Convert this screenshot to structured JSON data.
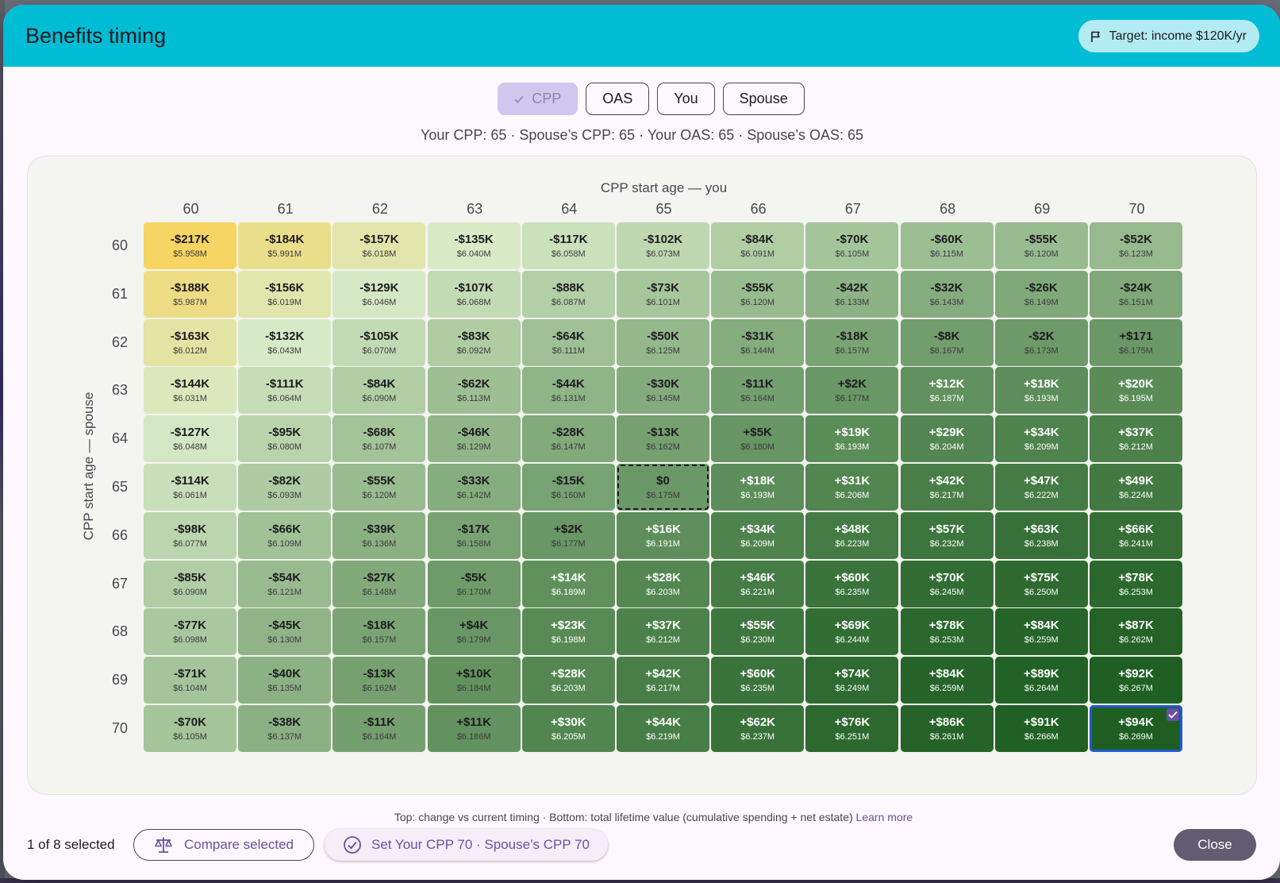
{
  "dialog": {
    "title": "Benefits timing",
    "target_chip": {
      "icon": "flag-icon",
      "label": "Target: income $120K/yr"
    }
  },
  "segments": [
    {
      "label": "CPP",
      "selected": true
    },
    {
      "label": "OAS",
      "selected": false
    },
    {
      "label": "You",
      "selected": false
    },
    {
      "label": "Spouse",
      "selected": false
    }
  ],
  "summary": "Your CPP: 65 · Spouse’s CPP: 65 · Your OAS: 65 · Spouse’s OAS: 65",
  "heatmap": {
    "col_axis_title": "CPP start age — you",
    "row_axis_title": "CPP start age — spouse",
    "col_ages": [
      "60",
      "61",
      "62",
      "63",
      "64",
      "65",
      "66",
      "67",
      "68",
      "69",
      "70"
    ],
    "row_ages": [
      "60",
      "61",
      "62",
      "63",
      "64",
      "65",
      "66",
      "67",
      "68",
      "69",
      "70"
    ],
    "current": {
      "row": 5,
      "col": 5
    },
    "selected": {
      "row": 10,
      "col": 10
    },
    "colors": {
      "worst": "#f6d562",
      "mid": "#d8ebc8",
      "best": "#1e5e22"
    },
    "rows": [
      [
        [
          "-$217K",
          "$5.958M"
        ],
        [
          "-$184K",
          "$5.991M"
        ],
        [
          "-$157K",
          "$6.018M"
        ],
        [
          "-$135K",
          "$6.040M"
        ],
        [
          "-$117K",
          "$6.058M"
        ],
        [
          "-$102K",
          "$6.073M"
        ],
        [
          "-$84K",
          "$6.091M"
        ],
        [
          "-$70K",
          "$6.105M"
        ],
        [
          "-$60K",
          "$6.115M"
        ],
        [
          "-$55K",
          "$6.120M"
        ],
        [
          "-$52K",
          "$6.123M"
        ]
      ],
      [
        [
          "-$188K",
          "$5.987M"
        ],
        [
          "-$156K",
          "$6.019M"
        ],
        [
          "-$129K",
          "$6.046M"
        ],
        [
          "-$107K",
          "$6.068M"
        ],
        [
          "-$88K",
          "$6.087M"
        ],
        [
          "-$73K",
          "$6.101M"
        ],
        [
          "-$55K",
          "$6.120M"
        ],
        [
          "-$42K",
          "$6.133M"
        ],
        [
          "-$32K",
          "$6.143M"
        ],
        [
          "-$26K",
          "$6.149M"
        ],
        [
          "-$24K",
          "$6.151M"
        ]
      ],
      [
        [
          "-$163K",
          "$6.012M"
        ],
        [
          "-$132K",
          "$6.043M"
        ],
        [
          "-$105K",
          "$6.070M"
        ],
        [
          "-$83K",
          "$6.092M"
        ],
        [
          "-$64K",
          "$6.111M"
        ],
        [
          "-$50K",
          "$6.125M"
        ],
        [
          "-$31K",
          "$6.144M"
        ],
        [
          "-$18K",
          "$6.157M"
        ],
        [
          "-$8K",
          "$6.167M"
        ],
        [
          "-$2K",
          "$6.173M"
        ],
        [
          "+$171",
          "$6.175M"
        ]
      ],
      [
        [
          "-$144K",
          "$6.031M"
        ],
        [
          "-$111K",
          "$6.064M"
        ],
        [
          "-$84K",
          "$6.090M"
        ],
        [
          "-$62K",
          "$6.113M"
        ],
        [
          "-$44K",
          "$6.131M"
        ],
        [
          "-$30K",
          "$6.145M"
        ],
        [
          "-$11K",
          "$6.164M"
        ],
        [
          "+$2K",
          "$6.177M"
        ],
        [
          "+$12K",
          "$6.187M"
        ],
        [
          "+$18K",
          "$6.193M"
        ],
        [
          "+$20K",
          "$6.195M"
        ]
      ],
      [
        [
          "-$127K",
          "$6.048M"
        ],
        [
          "-$95K",
          "$6.080M"
        ],
        [
          "-$68K",
          "$6.107M"
        ],
        [
          "-$46K",
          "$6.129M"
        ],
        [
          "-$28K",
          "$6.147M"
        ],
        [
          "-$13K",
          "$6.162M"
        ],
        [
          "+$5K",
          "$6.180M"
        ],
        [
          "+$19K",
          "$6.193M"
        ],
        [
          "+$29K",
          "$6.204M"
        ],
        [
          "+$34K",
          "$6.209M"
        ],
        [
          "+$37K",
          "$6.212M"
        ]
      ],
      [
        [
          "-$114K",
          "$6.061M"
        ],
        [
          "-$82K",
          "$6.093M"
        ],
        [
          "-$55K",
          "$6.120M"
        ],
        [
          "-$33K",
          "$6.142M"
        ],
        [
          "-$15K",
          "$6.160M"
        ],
        [
          "$0",
          "$6.175M"
        ],
        [
          "+$18K",
          "$6.193M"
        ],
        [
          "+$31K",
          "$6.206M"
        ],
        [
          "+$42K",
          "$6.217M"
        ],
        [
          "+$47K",
          "$6.222M"
        ],
        [
          "+$49K",
          "$6.224M"
        ]
      ],
      [
        [
          "-$98K",
          "$6.077M"
        ],
        [
          "-$66K",
          "$6.109M"
        ],
        [
          "-$39K",
          "$6.136M"
        ],
        [
          "-$17K",
          "$6.158M"
        ],
        [
          "+$2K",
          "$6.177M"
        ],
        [
          "+$16K",
          "$6.191M"
        ],
        [
          "+$34K",
          "$6.209M"
        ],
        [
          "+$48K",
          "$6.223M"
        ],
        [
          "+$57K",
          "$6.232M"
        ],
        [
          "+$63K",
          "$6.238M"
        ],
        [
          "+$66K",
          "$6.241M"
        ]
      ],
      [
        [
          "-$85K",
          "$6.090M"
        ],
        [
          "-$54K",
          "$6.121M"
        ],
        [
          "-$27K",
          "$6.148M"
        ],
        [
          "-$5K",
          "$6.170M"
        ],
        [
          "+$14K",
          "$6.189M"
        ],
        [
          "+$28K",
          "$6.203M"
        ],
        [
          "+$46K",
          "$6.221M"
        ],
        [
          "+$60K",
          "$6.235M"
        ],
        [
          "+$70K",
          "$6.245M"
        ],
        [
          "+$75K",
          "$6.250M"
        ],
        [
          "+$78K",
          "$6.253M"
        ]
      ],
      [
        [
          "-$77K",
          "$6.098M"
        ],
        [
          "-$45K",
          "$6.130M"
        ],
        [
          "-$18K",
          "$6.157M"
        ],
        [
          "+$4K",
          "$6.179M"
        ],
        [
          "+$23K",
          "$6.198M"
        ],
        [
          "+$37K",
          "$6.212M"
        ],
        [
          "+$55K",
          "$6.230M"
        ],
        [
          "+$69K",
          "$6.244M"
        ],
        [
          "+$78K",
          "$6.253M"
        ],
        [
          "+$84K",
          "$6.259M"
        ],
        [
          "+$87K",
          "$6.262M"
        ]
      ],
      [
        [
          "-$71K",
          "$6.104M"
        ],
        [
          "-$40K",
          "$6.135M"
        ],
        [
          "-$13K",
          "$6.162M"
        ],
        [
          "+$10K",
          "$6.184M"
        ],
        [
          "+$28K",
          "$6.203M"
        ],
        [
          "+$42K",
          "$6.217M"
        ],
        [
          "+$60K",
          "$6.235M"
        ],
        [
          "+$74K",
          "$6.249M"
        ],
        [
          "+$84K",
          "$6.259M"
        ],
        [
          "+$89K",
          "$6.264M"
        ],
        [
          "+$92K",
          "$6.267M"
        ]
      ],
      [
        [
          "-$70K",
          "$6.105M"
        ],
        [
          "-$38K",
          "$6.137M"
        ],
        [
          "-$11K",
          "$6.164M"
        ],
        [
          "+$11K",
          "$6.186M"
        ],
        [
          "+$30K",
          "$6.205M"
        ],
        [
          "+$44K",
          "$6.219M"
        ],
        [
          "+$62K",
          "$6.237M"
        ],
        [
          "+$76K",
          "$6.251M"
        ],
        [
          "+$86K",
          "$6.261M"
        ],
        [
          "+$91K",
          "$6.266M"
        ],
        [
          "+$94K",
          "$6.269M"
        ]
      ]
    ]
  },
  "legend": {
    "text": "Top: change vs current timing · Bottom: total lifetime value (cumulative spending + net estate)",
    "link": "Learn more"
  },
  "footer": {
    "selection_count": "1 of 8 selected",
    "compare_label": "Compare selected",
    "set_label": "Set Your CPP 70 · Spouse’s CPP 70",
    "close_label": "Close"
  }
}
